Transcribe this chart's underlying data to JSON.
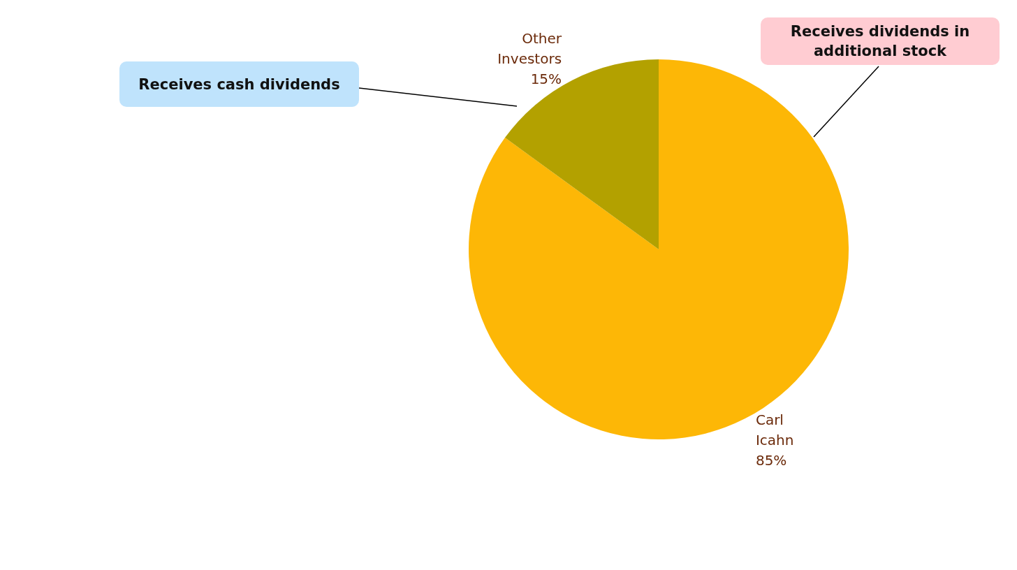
{
  "chart_data": {
    "type": "pie",
    "categories": [
      "Carl Icahn",
      "Other Investors"
    ],
    "values": [
      85,
      15
    ],
    "value_labels": [
      "85%",
      "15%"
    ],
    "colors": [
      "#fdb706",
      "#b3a100"
    ],
    "annotations": [
      "Receives dividends in additional stock",
      "Receives cash dividends"
    ],
    "legend": false
  }
}
